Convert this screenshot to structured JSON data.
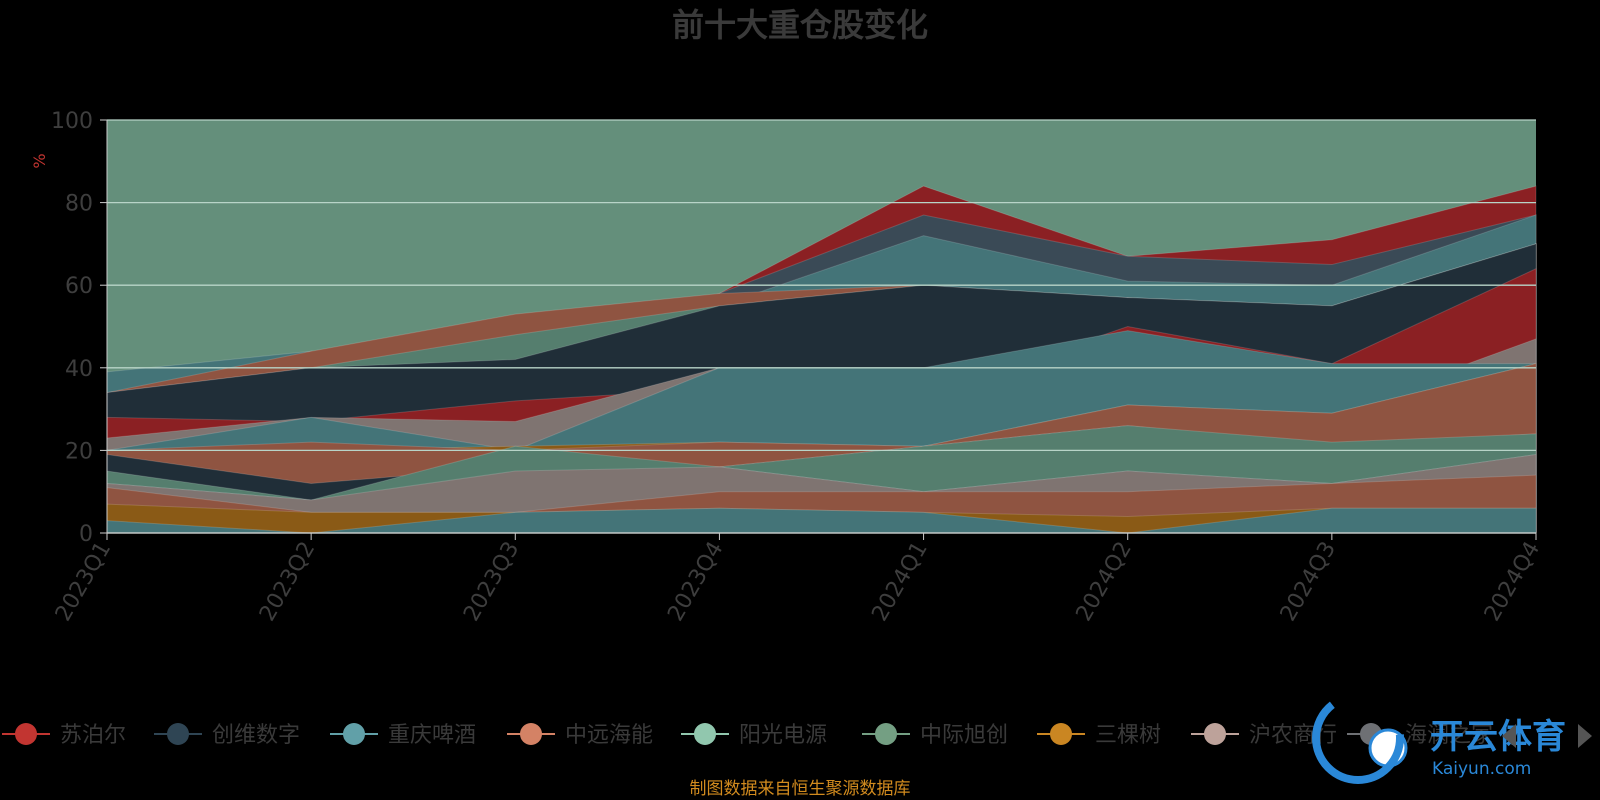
{
  "chart_data": {
    "type": "area",
    "stacked": false,
    "title": "前十大重仓股变化",
    "unit": "%",
    "xlabel": "",
    "ylabel": "",
    "ylim": [
      0,
      100
    ],
    "y_ticks": [
      0,
      20,
      40,
      60,
      80,
      100
    ],
    "categories": [
      "2023Q1",
      "2023Q2",
      "2023Q3",
      "2023Q4",
      "2024Q1",
      "2024Q2",
      "2024Q3",
      "2024Q4"
    ],
    "grid": true,
    "legend_position": "bottom",
    "series": [
      {
        "name": "苏泊尔",
        "color": "#8b2023",
        "values": [
          34,
          44,
          42,
          58,
          84,
          67,
          71,
          84
        ]
      },
      {
        "name": "创维数字",
        "color": "#3a4a56",
        "values": [
          34,
          40,
          42,
          58,
          77,
          67,
          65,
          77
        ]
      },
      {
        "name": "重庆啤酒",
        "color": "#447478",
        "values": [
          39,
          44,
          37,
          55,
          72,
          61,
          60,
          77
        ]
      },
      {
        "name": "中远海能",
        "color": "#8f5441",
        "values": [
          34,
          44,
          53,
          58,
          60,
          57,
          55,
          70
        ]
      },
      {
        "name": "阳光电源",
        "color": "#557e6e",
        "values": [
          31,
          40,
          48,
          55,
          60,
          57,
          55,
          70
        ]
      },
      {
        "name": "中际旭创",
        "color": "#4e6c53",
        "values": [
          30,
          35,
          37,
          50,
          47,
          57,
          48,
          70
        ]
      },
      {
        "name": "三棵树",
        "color": "#8a5a16",
        "values": [
          30,
          35,
          37,
          45,
          47,
          57,
          48,
          70
        ]
      },
      {
        "name": "沪农商行",
        "color": "#7f7471",
        "values": [
          34,
          40,
          32,
          50,
          47,
          57,
          48,
          70
        ]
      },
      {
        "name": "海澜之家",
        "color": "#202e38",
        "values": [
          34,
          40,
          42,
          55,
          60,
          57,
          55,
          70
        ]
      },
      {
        "name": "",
        "color": "#8b2023",
        "values": [
          28,
          27,
          32,
          35,
          33,
          50,
          41,
          64
        ]
      },
      {
        "name": "",
        "color": "#7f7471",
        "values": [
          23,
          28,
          27,
          40,
          40,
          36,
          29,
          47
        ]
      },
      {
        "name": "",
        "color": "#447478",
        "values": [
          20,
          28,
          20,
          40,
          40,
          49,
          41,
          41
        ]
      },
      {
        "name": "",
        "color": "#8a5a16",
        "values": [
          20,
          20,
          21,
          22,
          21,
          31,
          29,
          41
        ]
      },
      {
        "name": "",
        "color": "#8f5441",
        "values": [
          20,
          22,
          20,
          22,
          21,
          31,
          29,
          41
        ]
      },
      {
        "name": "",
        "color": "#202e38",
        "values": [
          19,
          12,
          16,
          16,
          21,
          26,
          21,
          24
        ]
      },
      {
        "name": "",
        "color": "#557e6e",
        "values": [
          15,
          8,
          21,
          16,
          21,
          26,
          22,
          24
        ]
      },
      {
        "name": "",
        "color": "#3a4a56",
        "values": [
          12,
          8,
          10,
          16,
          10,
          15,
          12,
          19
        ]
      },
      {
        "name": "",
        "color": "#7f7471",
        "values": [
          12,
          8,
          15,
          16,
          10,
          15,
          12,
          19
        ]
      },
      {
        "name": "",
        "color": "#8f5441",
        "values": [
          11,
          5,
          5,
          10,
          10,
          10,
          12,
          14
        ]
      },
      {
        "name": "",
        "color": "#8a5a16",
        "values": [
          7,
          5,
          5,
          6,
          5,
          4,
          6,
          6
        ]
      },
      {
        "name": "",
        "color": "#447478",
        "values": [
          3,
          0,
          5,
          6,
          5,
          0,
          6,
          6
        ]
      }
    ]
  },
  "legend": {
    "items": [
      {
        "label": "苏泊尔",
        "color": "#c23531"
      },
      {
        "label": "创维数字",
        "color": "#2f4554"
      },
      {
        "label": "重庆啤酒",
        "color": "#61a0a8"
      },
      {
        "label": "中远海能",
        "color": "#d48265"
      },
      {
        "label": "阳光电源",
        "color": "#91c7ae"
      },
      {
        "label": "中际旭创",
        "color": "#749f83"
      },
      {
        "label": "三棵树",
        "color": "#ca8622"
      },
      {
        "label": "沪农商行",
        "color": "#bda29a"
      },
      {
        "label": "海澜之家",
        "color": "#6e7074"
      }
    ]
  },
  "footnote": "制图数据来自恒生聚源数据库",
  "watermark": {
    "main": "开云体育",
    "sub": "Kaiyun.com"
  }
}
